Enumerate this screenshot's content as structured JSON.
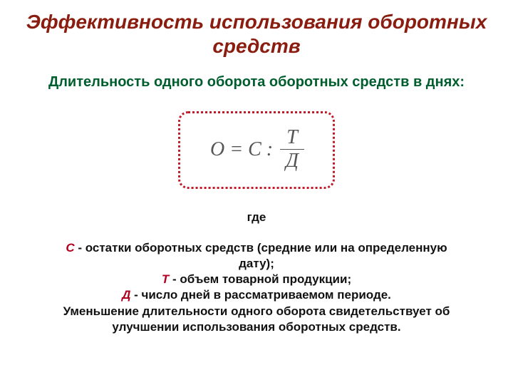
{
  "colors": {
    "title": "#8a1d0f",
    "subtitle": "#005e2e",
    "formula_border": "#c01a28",
    "formula_text": "#555555",
    "where": "#111111",
    "def_text": "#111111",
    "var_color": "#b00020"
  },
  "fonts": {
    "title_size": 28,
    "subtitle_size": 20,
    "formula_size": 28,
    "where_size": 17,
    "def_size": 17
  },
  "title": "Эффективность использования оборотных средств",
  "subtitle": "Длительность одного оборота оборотных средств в днях:",
  "formula": {
    "left": "О = С :",
    "numerator": "Т",
    "denominator": "Д"
  },
  "where_label": "где",
  "defs": {
    "var_c": "С",
    "c_text": " - остатки оборотных средств (средние или на определенную дату);",
    "var_t": "Т",
    "t_text": " - объем товарной продукции;",
    "var_d": "Д",
    "d_text": " - число дней в рассматриваемом периоде.",
    "tail": "Уменьшение длительности одного оборота свидетельствует об улучшении использования оборотных средств."
  }
}
